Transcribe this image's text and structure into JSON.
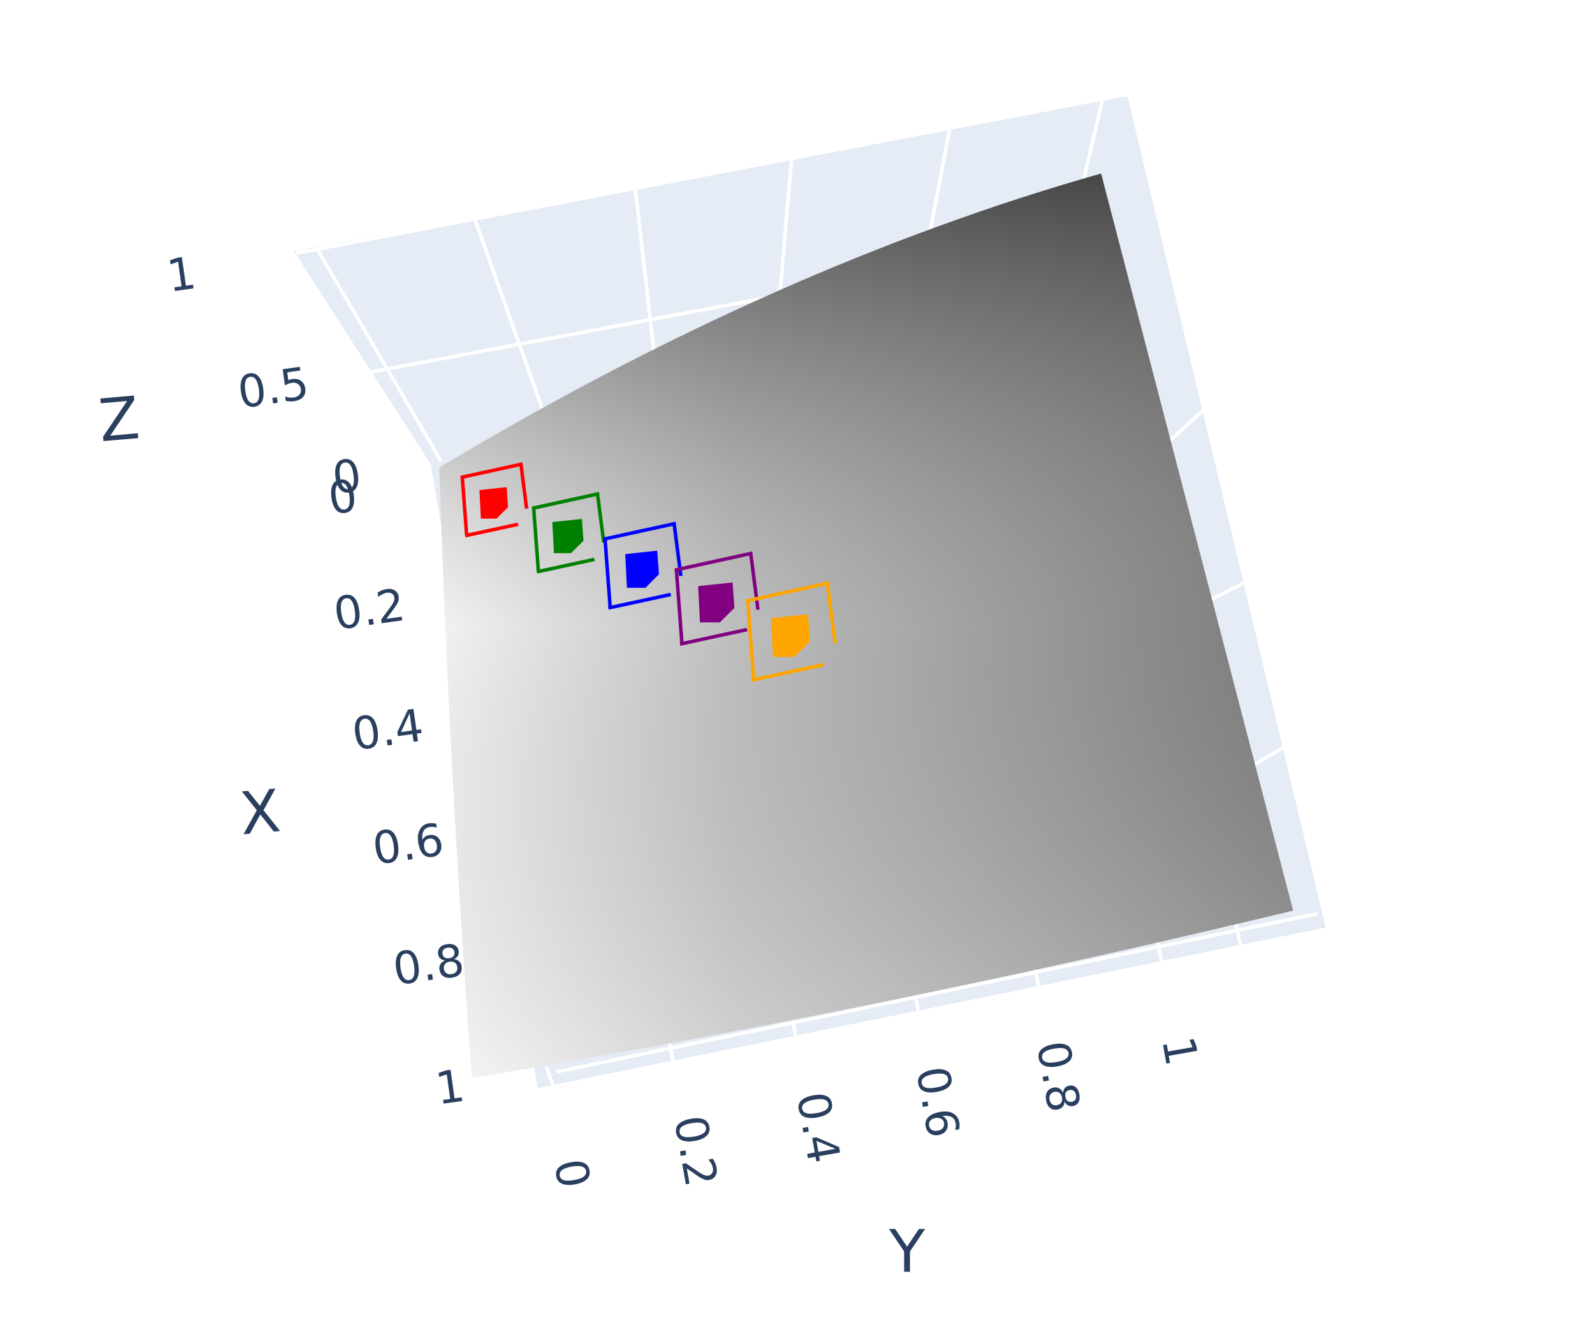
{
  "chart_data": {
    "type": "surface3d",
    "title": "",
    "axes": {
      "x": {
        "title": "X",
        "range": [
          0,
          1
        ],
        "ticks": [
          "0",
          "0.2",
          "0.4",
          "0.6",
          "0.8",
          "1"
        ]
      },
      "y": {
        "title": "Y",
        "range": [
          0,
          1
        ],
        "ticks": [
          "0",
          "0.2",
          "0.4",
          "0.6",
          "0.8",
          "1"
        ]
      },
      "z": {
        "title": "Z",
        "range": [
          0,
          1
        ],
        "ticks": [
          "0",
          "0.5",
          "1"
        ]
      }
    },
    "surface": {
      "colorscale": "greys",
      "showscale": false,
      "x": [
        0,
        0.25,
        0.5,
        0.75,
        1
      ],
      "y": [
        0,
        0.25,
        0.5,
        0.75,
        1
      ],
      "z": [
        [
          0.0,
          0.1,
          0.2,
          0.3,
          0.4
        ],
        [
          0.05,
          0.15,
          0.25,
          0.35,
          0.45
        ],
        [
          0.1,
          0.2,
          0.3,
          0.4,
          0.5
        ],
        [
          0.15,
          0.25,
          0.35,
          0.45,
          0.55
        ],
        [
          0.2,
          0.3,
          0.4,
          0.5,
          0.6
        ]
      ]
    },
    "markers": [
      {
        "color": "#ff0000",
        "x": 0.0,
        "y": 0.05,
        "z": 0.05
      },
      {
        "color": "#008000",
        "x": 0.1,
        "y": 0.15,
        "z": 0.1
      },
      {
        "color": "#0000ff",
        "x": 0.2,
        "y": 0.25,
        "z": 0.15
      },
      {
        "color": "#800080",
        "x": 0.3,
        "y": 0.35,
        "z": 0.2
      },
      {
        "color": "#ffa500",
        "x": 0.4,
        "y": 0.45,
        "z": 0.25
      }
    ],
    "scene": {
      "pane_color": "#e5ecf6",
      "grid_color": "#ffffff",
      "font_color": "#2a3f5f"
    }
  }
}
